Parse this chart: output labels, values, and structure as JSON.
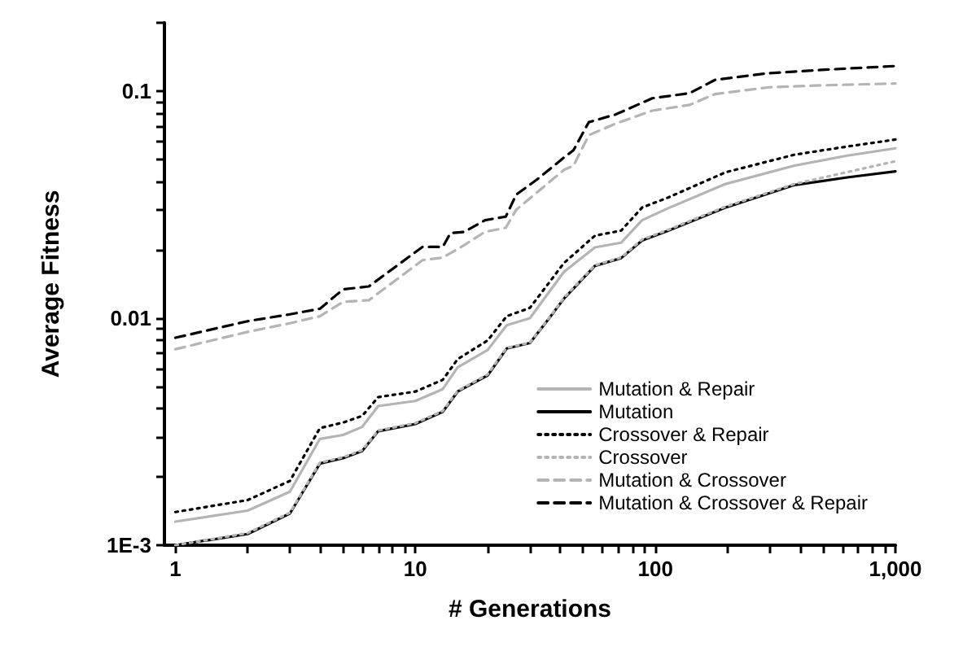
{
  "chart_data": {
    "type": "line",
    "xlabel": "# Generations",
    "ylabel": "Average Fitness",
    "log": "xy",
    "grid": false,
    "legend": "bottom right",
    "marker": "none",
    "xlim": [
      0.9,
      1000
    ],
    "ylim": [
      0.001,
      0.2
    ],
    "xticks": [
      1,
      {
        "value": 2,
        "label": null
      },
      {
        "value": 3,
        "label": null
      },
      {
        "value": 4,
        "label": null
      },
      {
        "value": 5,
        "label": null
      },
      {
        "value": 6,
        "label": null
      },
      {
        "value": 7,
        "label": null
      },
      {
        "value": 8,
        "label": null
      },
      {
        "value": 9,
        "label": null
      },
      10,
      {
        "value": 20,
        "label": null
      },
      {
        "value": 30,
        "label": null
      },
      {
        "value": 40,
        "label": null
      },
      {
        "value": 50,
        "label": null
      },
      {
        "value": 60,
        "label": null
      },
      {
        "value": 70,
        "label": null
      },
      {
        "value": 80,
        "label": null
      },
      {
        "value": 90,
        "label": null
      },
      100,
      {
        "value": 200,
        "label": null
      },
      {
        "value": 300,
        "label": null
      },
      {
        "value": 400,
        "label": null
      },
      {
        "value": 500,
        "label": null
      },
      {
        "value": 600,
        "label": null
      },
      {
        "value": 700,
        "label": null
      },
      {
        "value": 800,
        "label": null
      },
      {
        "value": 900,
        "label": null
      },
      {
        "value": 1000,
        "label": "1,000"
      }
    ],
    "yticks": [
      {
        "value": 0.001,
        "label": "1E-3"
      },
      {
        "value": 0.002,
        "label": null
      },
      {
        "value": 0.003,
        "label": null
      },
      {
        "value": 0.004,
        "label": null
      },
      {
        "value": 0.005,
        "label": null
      },
      {
        "value": 0.006,
        "label": null
      },
      {
        "value": 0.007,
        "label": null
      },
      {
        "value": 0.008,
        "label": null
      },
      {
        "value": 0.009,
        "label": null
      },
      0.01,
      {
        "value": 0.02,
        "label": null
      },
      {
        "value": 0.03,
        "label": null
      },
      {
        "value": 0.04,
        "label": null
      },
      {
        "value": 0.05,
        "label": null
      },
      {
        "value": 0.06,
        "label": null
      },
      {
        "value": 0.07,
        "label": null
      },
      {
        "value": 0.08,
        "label": null
      },
      {
        "value": 0.09,
        "label": null
      },
      0.1,
      {
        "value": 0.2,
        "label": null
      }
    ],
    "series": [
      {
        "name": "Mutation & Repair",
        "color": "#b4b4b4",
        "line_style": "solid",
        "x": [
          1,
          2,
          3,
          4,
          5,
          6,
          7,
          10,
          13,
          15,
          20,
          24,
          30,
          41.6,
          56,
          72,
          88,
          113,
          196,
          380,
          630,
          1000
        ],
        "values": [
          0.00127,
          0.00142,
          0.00172,
          0.00294,
          0.00306,
          0.00332,
          0.0041,
          0.00432,
          0.00487,
          0.00608,
          0.00724,
          0.0093,
          0.01,
          0.016,
          0.0205,
          0.0215,
          0.027,
          0.0305,
          0.039,
          0.047,
          0.052,
          0.056
        ]
      },
      {
        "name": "Mutation",
        "color": "#000000",
        "line_style": "solid",
        "x": [
          1,
          2,
          3,
          4,
          5,
          6,
          7,
          10,
          13,
          15,
          20,
          24,
          30,
          36,
          41.6,
          56,
          72,
          88,
          113,
          196,
          380,
          630,
          1000
        ],
        "values": [
          0.001,
          0.00112,
          0.00138,
          0.00229,
          0.00242,
          0.0026,
          0.00318,
          0.00342,
          0.00387,
          0.00475,
          0.0056,
          0.00735,
          0.00777,
          0.00995,
          0.0122,
          0.017,
          0.0184,
          0.022,
          0.0243,
          0.0307,
          0.0386,
          0.0417,
          0.0443
        ]
      },
      {
        "name": "Crossover & Repair",
        "color": "#000000",
        "line_style": "dotted",
        "x": [
          1,
          2,
          3,
          4,
          5,
          6,
          7,
          10,
          13,
          15,
          20,
          24,
          30,
          41.6,
          56,
          72,
          88,
          113,
          196,
          380,
          630,
          1000
        ],
        "values": [
          0.0014,
          0.00158,
          0.00192,
          0.00328,
          0.00347,
          0.00371,
          0.00449,
          0.00475,
          0.00535,
          0.0066,
          0.00798,
          0.0102,
          0.0111,
          0.0175,
          0.0231,
          0.0243,
          0.0307,
          0.034,
          0.0439,
          0.0525,
          0.057,
          0.0612
        ]
      },
      {
        "name": "Crossover",
        "color": "#b4b4b4",
        "line_style": "dotted",
        "x": [
          1,
          2,
          3,
          4,
          5,
          6,
          7,
          10,
          13,
          15,
          20,
          24,
          30,
          36,
          41.6,
          56,
          72,
          88,
          113,
          196,
          380,
          630,
          1000
        ],
        "values": [
          0.001,
          0.00113,
          0.00139,
          0.00231,
          0.00244,
          0.00262,
          0.0032,
          0.00345,
          0.0039,
          0.00478,
          0.00565,
          0.0074,
          0.0078,
          0.01,
          0.0123,
          0.0171,
          0.0185,
          0.0222,
          0.0245,
          0.031,
          0.039,
          0.044,
          0.0491
        ]
      },
      {
        "name": "Mutation & Crossover",
        "color": "#b4b4b4",
        "line_style": "dashed",
        "x": [
          1,
          2,
          3,
          4,
          5,
          6.4,
          10.7,
          13,
          16,
          19.5,
          23.8,
          26.3,
          32.3,
          41.6,
          45.6,
          52.8,
          68.5,
          97,
          139,
          177,
          297,
          490,
          1000
        ],
        "values": [
          0.0073,
          0.0087,
          0.0095,
          0.0102,
          0.0118,
          0.012,
          0.018,
          0.0185,
          0.021,
          0.024,
          0.025,
          0.03,
          0.036,
          0.045,
          0.047,
          0.064,
          0.072,
          0.082,
          0.087,
          0.097,
          0.104,
          0.106,
          0.108
        ]
      },
      {
        "name": "Mutation & Crossover & Repair",
        "color": "#000000",
        "line_style": "dashed",
        "x": [
          1,
          2,
          3,
          4,
          5,
          6.4,
          10.7,
          13,
          14,
          16,
          19.5,
          23.8,
          26.3,
          32.3,
          41.6,
          45.6,
          52.8,
          68.5,
          97,
          139,
          177,
          297,
          490,
          1000
        ],
        "values": [
          0.0082,
          0.0097,
          0.0104,
          0.011,
          0.0134,
          0.0138,
          0.0206,
          0.0206,
          0.0237,
          0.024,
          0.027,
          0.028,
          0.035,
          0.041,
          0.051,
          0.055,
          0.073,
          0.079,
          0.093,
          0.098,
          0.112,
          0.12,
          0.124,
          0.129
        ]
      }
    ]
  }
}
